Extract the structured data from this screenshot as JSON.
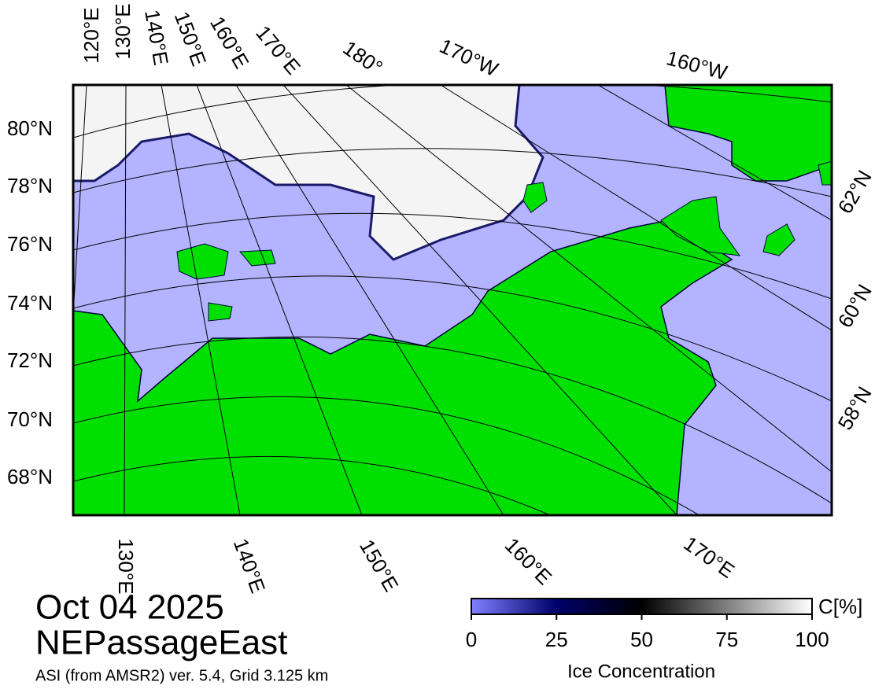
{
  "title": {
    "date": "Oct 04 2025",
    "region": "NEPassageEast",
    "source": "ASI (from AMSR2) ver. 5.4,  Grid 3.125 km"
  },
  "map": {
    "top_labels": [
      "120°E",
      "130°E",
      "140°E",
      "150°E",
      "160°E",
      "170°E",
      "180°",
      "170°W",
      "160°W"
    ],
    "left_labels": [
      "80°N",
      "78°N",
      "76°N",
      "74°N",
      "72°N",
      "70°N",
      "68°N"
    ],
    "right_labels": [
      "62°N",
      "60°N",
      "58°N"
    ],
    "bottom_labels": [
      "130°E",
      "140°E",
      "150°E",
      "160°E",
      "170°E"
    ]
  },
  "colorbar": {
    "unit": "C[%]",
    "label": "Ice Concentration",
    "range": [
      0,
      100
    ],
    "ticks": [
      0,
      25,
      50,
      75,
      100
    ]
  }
}
